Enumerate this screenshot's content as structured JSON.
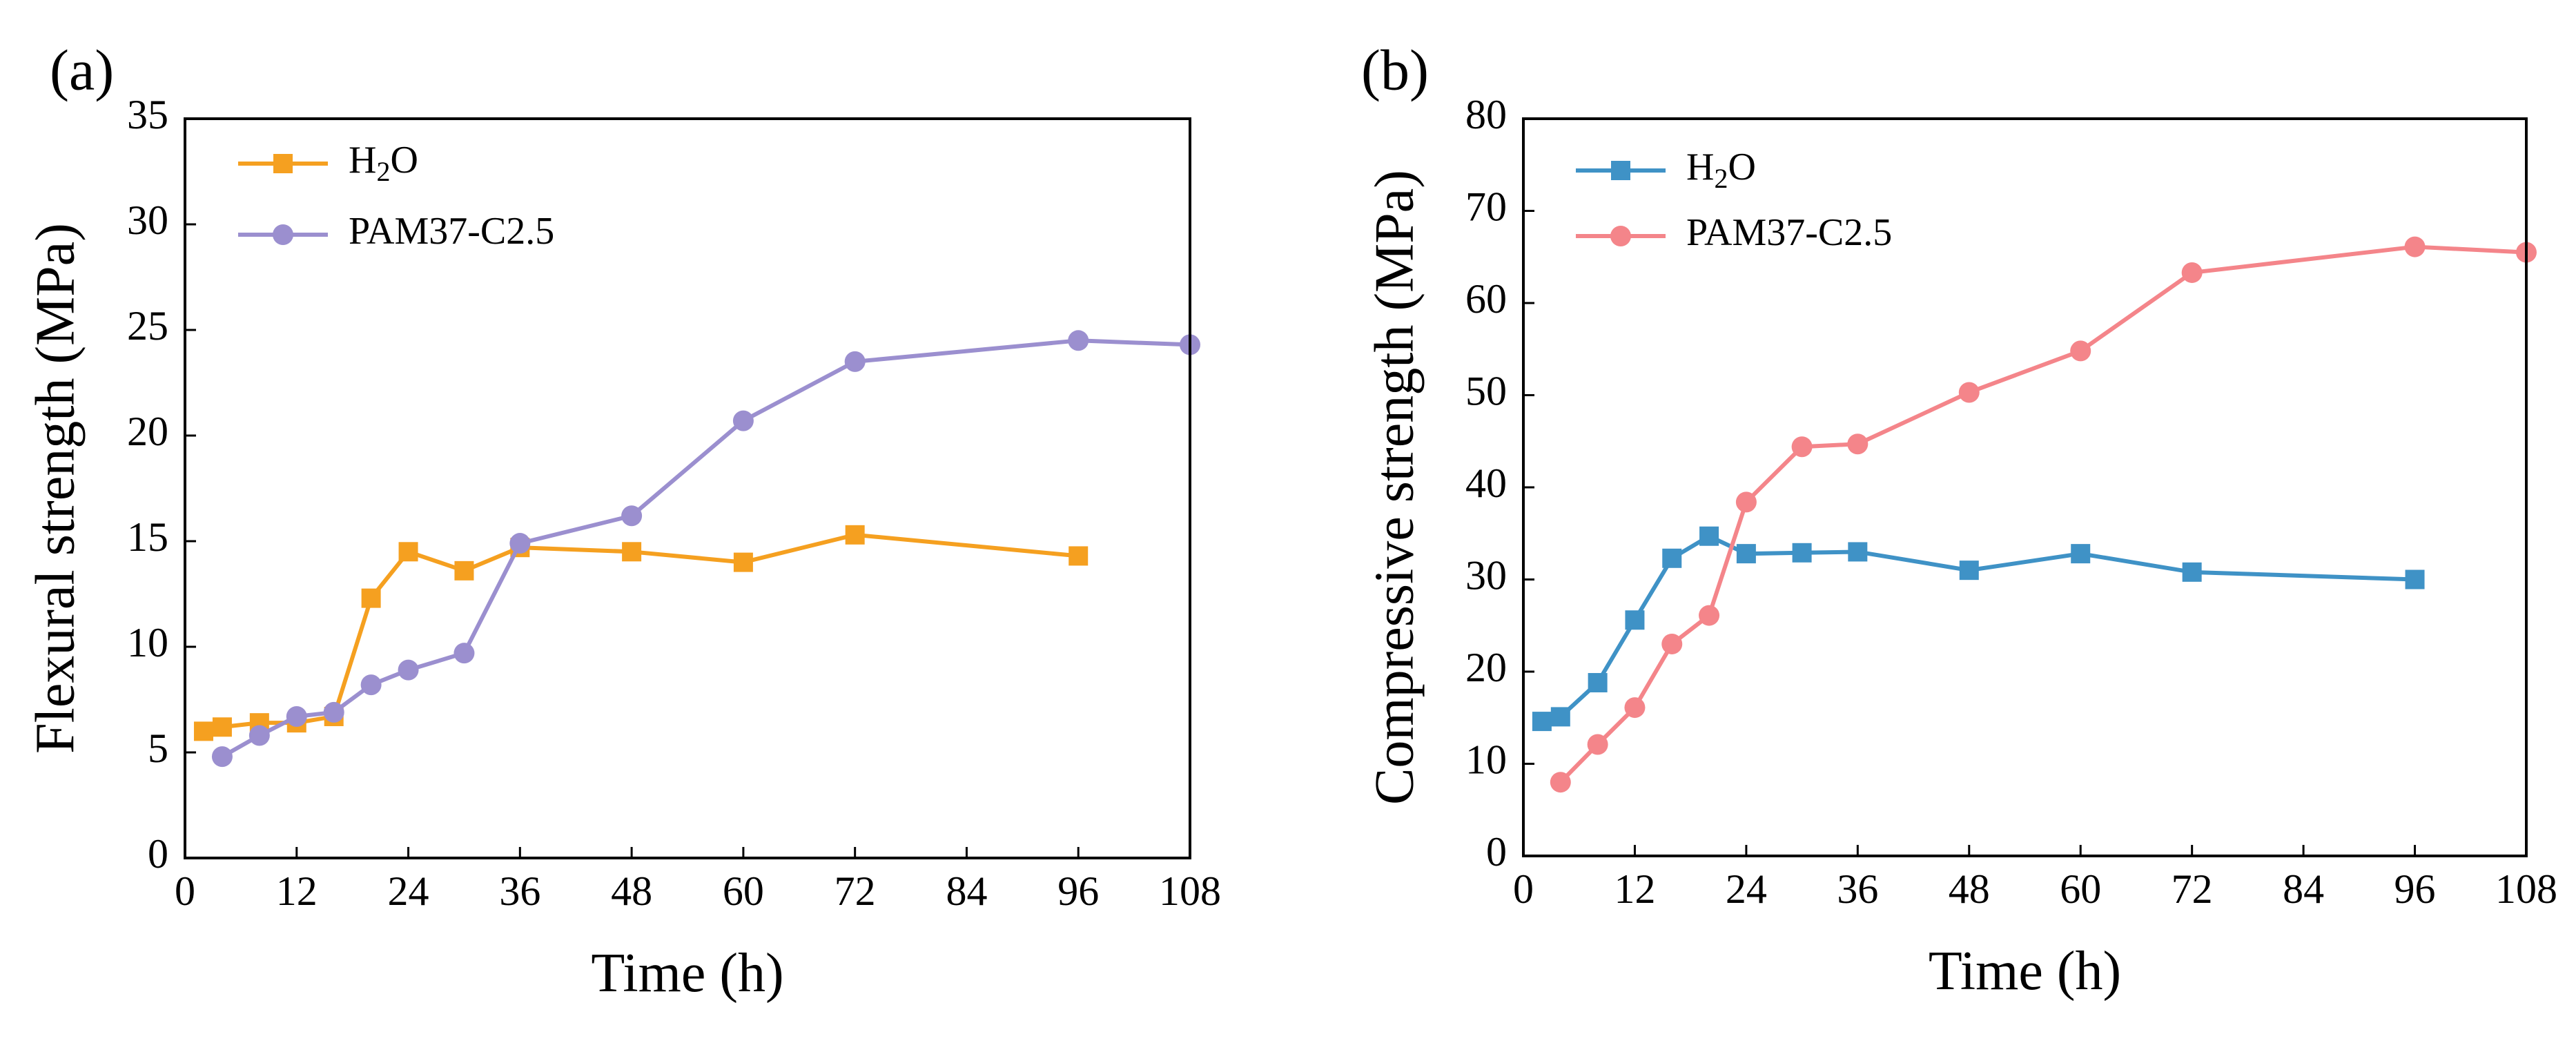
{
  "chart_data": [
    {
      "panel_label": "(a)",
      "type": "line",
      "xlabel": "Time (h)",
      "ylabel": "Flexural strength (MPa)",
      "xlim": [
        0,
        108
      ],
      "ylim": [
        0,
        35
      ],
      "xticks": [
        0,
        12,
        24,
        36,
        48,
        60,
        72,
        84,
        96,
        108
      ],
      "yticks": [
        0,
        5,
        10,
        15,
        20,
        25,
        30,
        35
      ],
      "legend_position": "top-left",
      "series": [
        {
          "name": "H2O",
          "name_main": "H",
          "name_sub": "2",
          "name_tail": "O",
          "color": "#F5A020",
          "marker": "square",
          "x": [
            2,
            4,
            8,
            12,
            16,
            20,
            24,
            30,
            36,
            48,
            60,
            72,
            96
          ],
          "y": [
            6.0,
            6.2,
            6.4,
            6.4,
            6.7,
            12.3,
            14.5,
            13.6,
            14.7,
            14.5,
            14.0,
            15.3,
            14.3
          ]
        },
        {
          "name": "PAM37-C2.5",
          "color": "#9B8FCF",
          "marker": "circle",
          "x": [
            4,
            8,
            12,
            16,
            20,
            24,
            30,
            36,
            48,
            60,
            72,
            96,
            108
          ],
          "y": [
            4.8,
            5.8,
            6.7,
            6.9,
            8.2,
            8.9,
            9.7,
            14.9,
            16.2,
            20.7,
            23.5,
            24.5,
            24.3
          ]
        }
      ]
    },
    {
      "panel_label": "(b)",
      "type": "line",
      "xlabel": "Time (h)",
      "ylabel": "Compressive strength (MPa)",
      "xlim": [
        0,
        108
      ],
      "ylim": [
        0,
        80
      ],
      "xticks": [
        0,
        12,
        24,
        36,
        48,
        60,
        72,
        84,
        96,
        108
      ],
      "yticks": [
        0,
        10,
        20,
        30,
        40,
        50,
        60,
        70,
        80
      ],
      "legend_position": "top-left",
      "series": [
        {
          "name": "H2O",
          "name_main": "H",
          "name_sub": "2",
          "name_tail": "O",
          "color": "#3F92C6",
          "marker": "square",
          "x": [
            2,
            4,
            8,
            12,
            16,
            20,
            24,
            30,
            36,
            48,
            60,
            72,
            96
          ],
          "y": [
            14.6,
            15.1,
            18.8,
            25.6,
            32.3,
            34.7,
            32.8,
            32.9,
            33.0,
            31.0,
            32.8,
            30.8,
            30.0
          ]
        },
        {
          "name": "PAM37-C2.5",
          "color": "#F4858A",
          "marker": "circle",
          "x": [
            4,
            8,
            12,
            16,
            20,
            24,
            30,
            36,
            48,
            60,
            72,
            96,
            108
          ],
          "y": [
            8.0,
            12.1,
            16.1,
            23.0,
            26.1,
            38.4,
            44.4,
            44.7,
            50.3,
            54.8,
            63.3,
            66.1,
            65.5
          ]
        }
      ]
    }
  ]
}
